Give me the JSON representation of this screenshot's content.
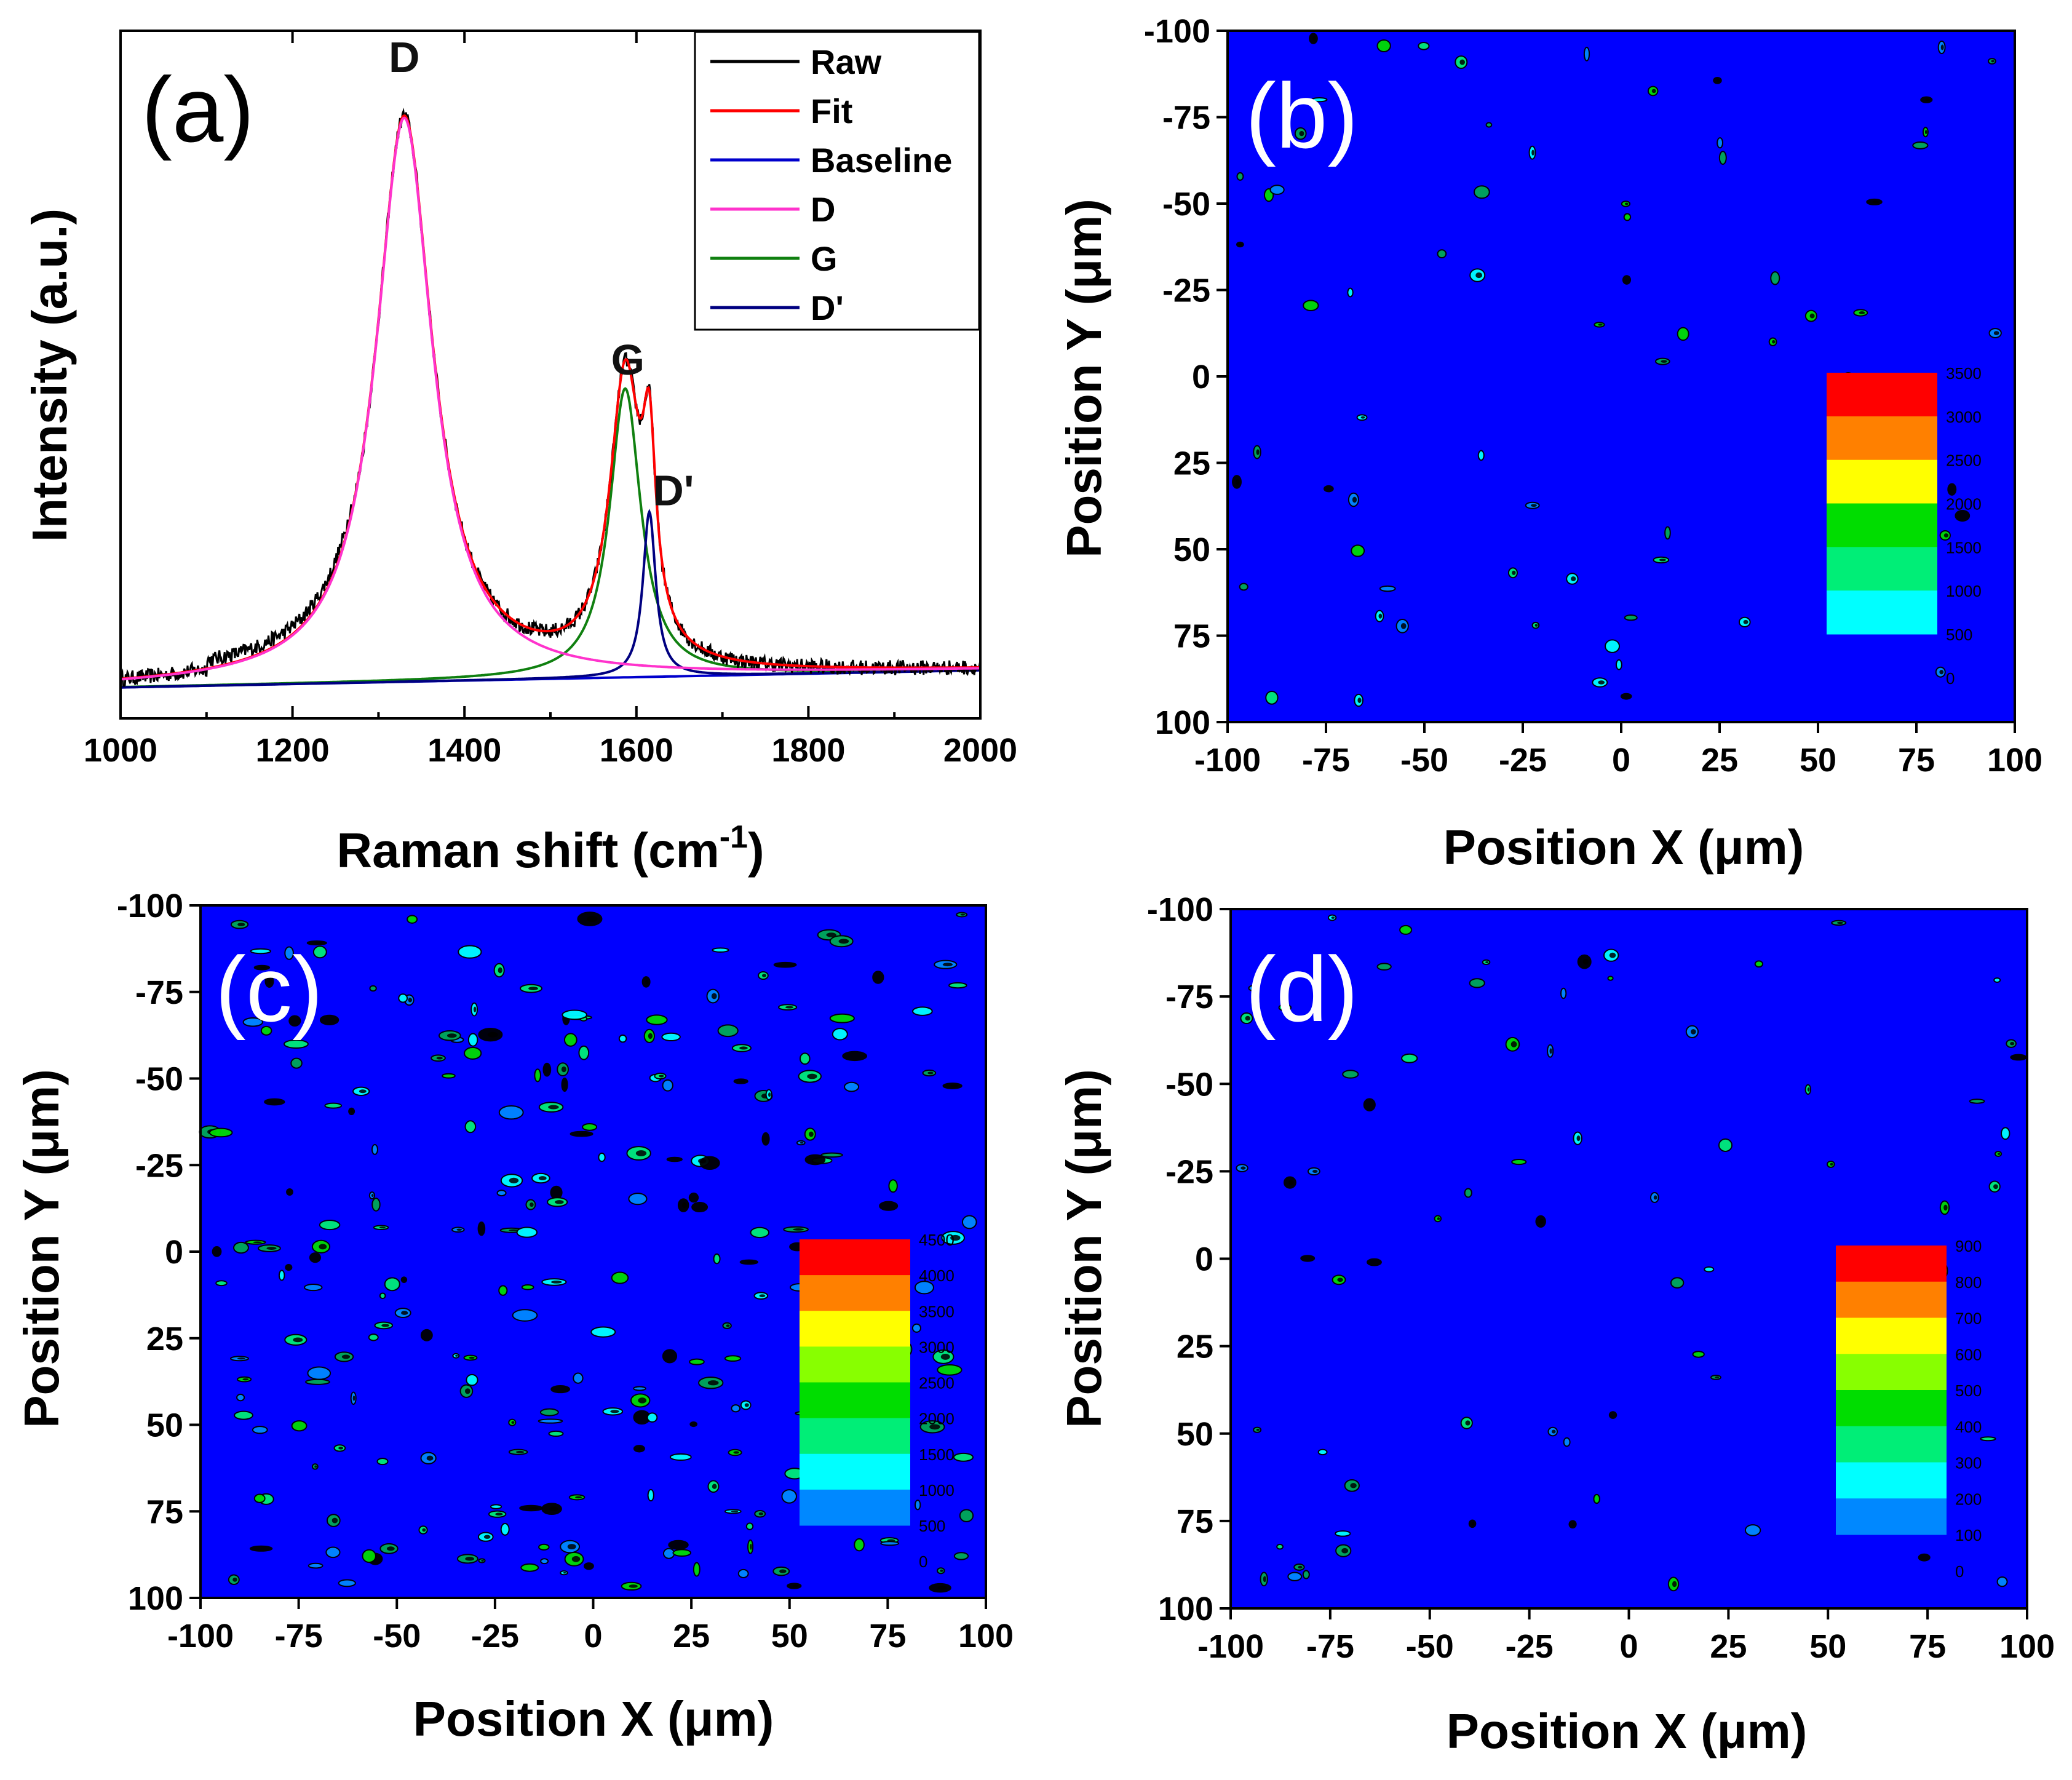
{
  "chart_data": [
    {
      "id": "a",
      "type": "line",
      "panel_label": "(a)",
      "xlabel": "Raman shift (cm",
      "xlabel_sup": "-1",
      "xlabel_end": ")",
      "ylabel": "Intensity (a.u.)",
      "xlim": [
        1000,
        2000
      ],
      "ylim": [
        0,
        1.0
      ],
      "xticks": [
        "1000",
        "1200",
        "1400",
        "1600",
        "1800",
        "2000"
      ],
      "peak_labels": [
        {
          "text": "D",
          "x": 1330,
          "y": 0.94
        },
        {
          "text": "G",
          "x": 1590,
          "y": 0.5
        },
        {
          "text": "D'",
          "x": 1643,
          "y": 0.31
        }
      ],
      "legend": {
        "position": "top-right",
        "entries": [
          {
            "name": "Raw",
            "color": "#000000"
          },
          {
            "name": "Fit",
            "color": "#ff0000"
          },
          {
            "name": "Baseline",
            "color": "#0000cc"
          },
          {
            "name": "D",
            "color": "#ff33cc"
          },
          {
            "name": "G",
            "color": "#108010"
          },
          {
            "name": "D'",
            "color": "#000080"
          }
        ]
      },
      "peaks": {
        "D": {
          "center": 1330,
          "amplitude": 0.82,
          "hwhm": 40
        },
        "G": {
          "center": 1587,
          "amplitude": 0.42,
          "hwhm": 22
        },
        "Dprime": {
          "center": 1615,
          "amplitude": 0.24,
          "hwhm": 9
        },
        "baseline": {
          "start": 0.045,
          "end": 0.07
        }
      }
    },
    {
      "id": "b",
      "type": "heatmap",
      "panel_label": "(b)",
      "xlabel": "Position X (μm)",
      "ylabel": "Position Y (μm)",
      "xlim": [
        -100,
        100
      ],
      "ylim": [
        -100,
        100
      ],
      "xticks": [
        "-100",
        "-75",
        "-50",
        "-25",
        "0",
        "25",
        "50",
        "75",
        "100"
      ],
      "yticks": [
        "-100",
        "-75",
        "-50",
        "-25",
        "0",
        "25",
        "50",
        "75",
        "100"
      ],
      "colorbar": {
        "levels": [
          "3500",
          "3000",
          "2500",
          "2000",
          "1500",
          "1000",
          "500",
          "0"
        ],
        "colors": [
          "#ff0000",
          "#ff8000",
          "#ffff00",
          "#00dd00",
          "#00ee77",
          "#00ffff"
        ]
      },
      "background_color": "#0000ff",
      "spot_count": 70
    },
    {
      "id": "c",
      "type": "heatmap",
      "panel_label": "(c)",
      "xlabel": "Position X (μm)",
      "ylabel": "Position Y (μm)",
      "xlim": [
        -100,
        100
      ],
      "ylim": [
        -100,
        100
      ],
      "xticks": [
        "-100",
        "-75",
        "-50",
        "-25",
        "0",
        "25",
        "50",
        "75",
        "100"
      ],
      "yticks": [
        "-100",
        "-75",
        "-50",
        "-25",
        "0",
        "25",
        "50",
        "75",
        "100"
      ],
      "colorbar": {
        "levels": [
          "4500",
          "4000",
          "3500",
          "3000",
          "2500",
          "2000",
          "1500",
          "1000",
          "500",
          "0"
        ],
        "colors": [
          "#ff0000",
          "#ff8000",
          "#ffff00",
          "#88ff00",
          "#00dd00",
          "#00ee77",
          "#00ffff",
          "#0088ff"
        ]
      },
      "background_color": "#0000ff",
      "spot_count": 260
    },
    {
      "id": "d",
      "type": "heatmap",
      "panel_label": "(d)",
      "xlabel": "Position X (μm)",
      "ylabel": "Position Y (μm)",
      "xlim": [
        -100,
        100
      ],
      "ylim": [
        -100,
        100
      ],
      "xticks": [
        "-100",
        "-75",
        "-50",
        "-25",
        "0",
        "25",
        "50",
        "75",
        "100"
      ],
      "yticks": [
        "-100",
        "-75",
        "-50",
        "-25",
        "0",
        "25",
        "50",
        "75",
        "100"
      ],
      "colorbar": {
        "levels": [
          "900",
          "800",
          "700",
          "600",
          "500",
          "400",
          "300",
          "200",
          "100",
          "0"
        ],
        "colors": [
          "#ff0000",
          "#ff8000",
          "#ffff00",
          "#88ff00",
          "#00dd00",
          "#00ee77",
          "#00ffff",
          "#0088ff"
        ]
      },
      "background_color": "#0000ff",
      "spot_count": 75
    }
  ]
}
